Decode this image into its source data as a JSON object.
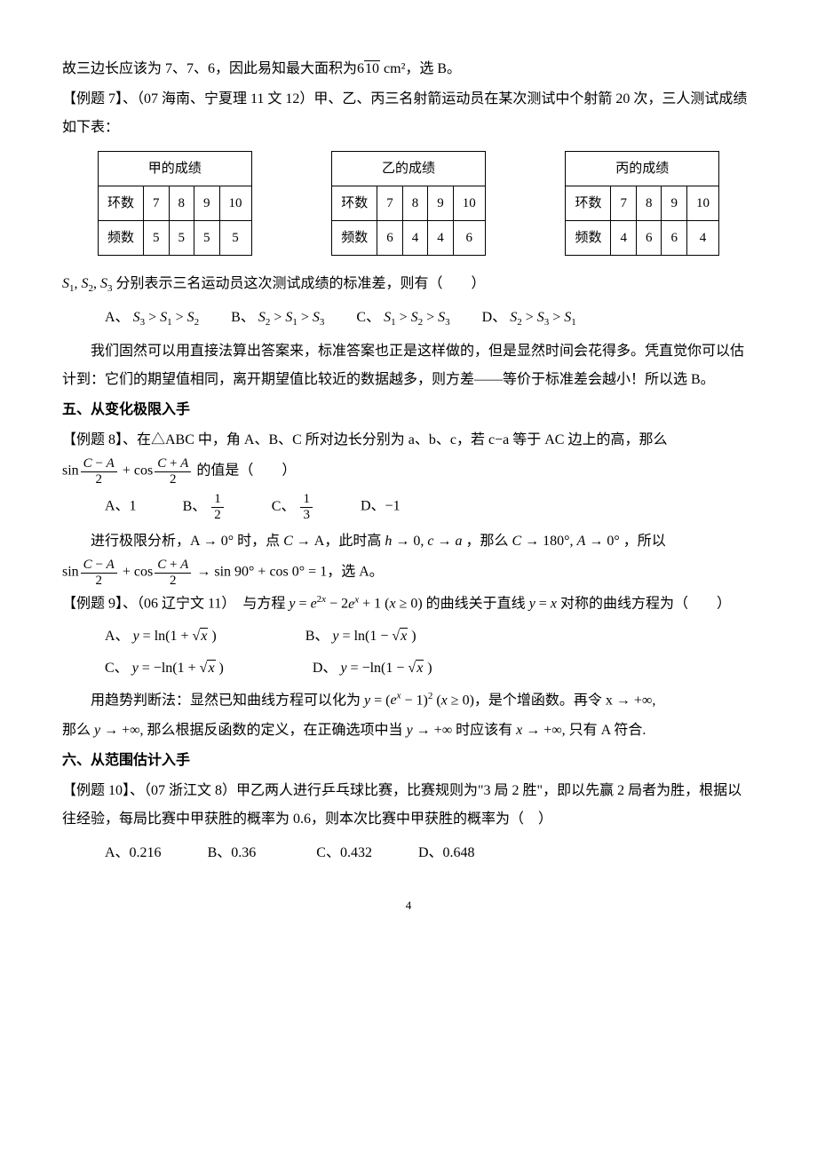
{
  "line1": "故三边长应该为 7、7、6，因此易知最大面积为",
  "line1_expr": "6√10",
  "line1_tail": " cm²，选 B。",
  "ex7_head": "【例题 7】、",
  "ex7_src": "（07 海南、宁夏理 11 文 12）甲、乙、丙三名射箭运动员在某次测试中个射箭 20 次，三人测试成绩如下表：",
  "tables": [
    {
      "title": "甲的成绩",
      "row1_label": "环数",
      "row1": [
        "7",
        "8",
        "9",
        "10"
      ],
      "row2_label": "频数",
      "row2": [
        "5",
        "5",
        "5",
        "5"
      ]
    },
    {
      "title": "乙的成绩",
      "row1_label": "环数",
      "row1": [
        "7",
        "8",
        "9",
        "10"
      ],
      "row2_label": "频数",
      "row2": [
        "6",
        "4",
        "4",
        "6"
      ]
    },
    {
      "title": "丙的成绩",
      "row1_label": "环数",
      "row1": [
        "7",
        "8",
        "9",
        "10"
      ],
      "row2_label": "频数",
      "row2": [
        "4",
        "6",
        "6",
        "4"
      ]
    }
  ],
  "ex7_q": "S₁, S₂, S₃ 分别表示三名运动员这次测试成绩的标准差，则有（　　）",
  "ex7_opts": {
    "A": "A、",
    "A_expr": "S₃ > S₁ > S₂",
    "B": "B、",
    "B_expr": "S₂ > S₁ > S₃",
    "C": "C、",
    "C_expr": "S₁ > S₂ > S₃",
    "D": "D、",
    "D_expr": "S₂ > S₃ > S₁"
  },
  "ex7_sol1": "我们固然可以用直接法算出答案来，标准答案也正是这样做的，但是显然时间会花得多。凭直觉你可以估计到：它们的期望值相同，离开期望值比较近的数据越多，则方差——等价于标准差会越小！所以选 B。",
  "sec5": "五、从变化极限入手",
  "ex8_head": "【例题 8】、在△ABC 中，角 A、B、C 所对边长分别为 a、b、c，若 c−a 等于 AC 边上的高，那么",
  "ex8_expr_tail": " 的值是（　　）",
  "ex8_opts": {
    "A": "A、1",
    "B": "B、",
    "C": "C、",
    "D": "D、−1"
  },
  "ex8_fracB": {
    "num": "1",
    "den": "2"
  },
  "ex8_fracC": {
    "num": "1",
    "den": "3"
  },
  "ex8_sol1_a": "进行极限分析，",
  "ex8_sol1_b": "A → 0° 时，点 C → A，此时高 h → 0, c → a ，那么 C → 180°, A → 0° ，所以",
  "ex8_sol2_tail": " → sin 90° + cos 0° = 1，选 A。",
  "ex9_head": "【例题 9】、（06 辽宁文 11）　与方程 ",
  "ex9_eq1": "y = e²ˣ − 2eˣ + 1 (x ≥ 0)",
  "ex9_mid": " 的曲线关于直线 ",
  "ex9_eq2": "y = x",
  "ex9_tail": " 对称的曲线方程为（　　）",
  "ex9_opts": {
    "A": "A、",
    "A_expr": "y = ln(1 + √x)",
    "B": "B、",
    "B_expr": "y = ln(1 − √x)",
    "C": "C、",
    "C_expr": "y = −ln(1 + √x)",
    "D": "D、",
    "D_expr": "y = −ln(1 − √x)"
  },
  "ex9_sol_a": "用趋势判断法：显然已知曲线方程可以化为 ",
  "ex9_sol_eq": "y = (eˣ − 1)² (x ≥ 0)",
  "ex9_sol_b": "，是个增函数。再令 x → +∞,",
  "ex9_sol_c": "那么 y → +∞, 那么根据反函数的定义，在正确选项中当 y → +∞ 时应该有 x → +∞, 只有 A 符合.",
  "sec6": "六、从范围估计入手",
  "ex10_head": "【例题 10】、（07 浙江文 8）甲乙两人进行乒乓球比赛，比赛规则为\"3 局 2 胜\"，即以先赢 2 局者为胜，根据以往经验，每局比赛中甲获胜的概率为 0.6，则本次比赛中甲获胜的概率为（　）",
  "ex10_opts": {
    "A": "A、0.216",
    "B": "B、0.36",
    "C": "C、0.432",
    "D": "D、0.648"
  },
  "pagenum": "4"
}
